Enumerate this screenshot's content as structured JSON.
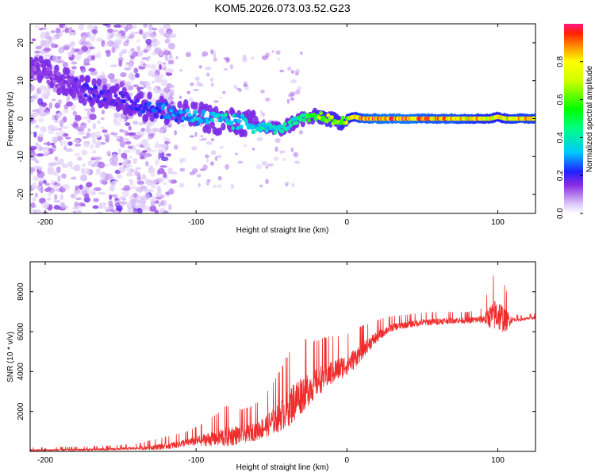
{
  "title": "KOM5.2026.073.03.52.G23",
  "chart_data": [
    {
      "type": "heatmap",
      "title": "KOM5.2026.073.03.52.G23",
      "xlabel": "Height of straight line (km)",
      "ylabel": "Frequency (Hz)",
      "xlim": [
        -210,
        125
      ],
      "ylim": [
        -25,
        25
      ],
      "x_ticks": [
        -200,
        -100,
        0,
        100
      ],
      "x_tick_labels": [
        "-200",
        "-100",
        "0",
        "100"
      ],
      "y_ticks": [
        -20,
        -10,
        0,
        10,
        20
      ],
      "y_tick_labels": [
        "-20",
        "-10",
        "0",
        "10",
        "20"
      ],
      "colorbar": {
        "label": "Normalized spectral amplitude",
        "range": [
          0,
          1
        ],
        "ticks": [
          0,
          0.2,
          0.4,
          0.6,
          0.8
        ],
        "tick_labels": [
          "0.0",
          "0.2",
          "0.4",
          "0.6",
          "0.8"
        ]
      },
      "ridge": {
        "x": [
          -210,
          -190,
          -170,
          -150,
          -130,
          -120,
          -110,
          -100,
          -90,
          -80,
          -70,
          -60,
          -50,
          -45,
          -40,
          -35,
          -30,
          -25,
          -20,
          -15,
          -10,
          -5,
          0,
          5,
          10,
          20,
          30,
          40,
          50,
          60,
          70,
          80,
          90,
          95,
          100,
          105,
          110,
          120,
          125
        ],
        "freq": [
          14,
          10,
          7,
          5,
          3,
          2,
          1,
          0.5,
          0,
          -1,
          -1,
          -2,
          -2.5,
          -3,
          -2,
          -1,
          0,
          0,
          0.5,
          0.5,
          -0.5,
          -1,
          0,
          0.5,
          0,
          0,
          0,
          0,
          0,
          0,
          0,
          0,
          0,
          0,
          0.5,
          0,
          0,
          0,
          0
        ],
        "amplitude": [
          0.15,
          0.15,
          0.2,
          0.2,
          0.25,
          0.3,
          0.3,
          0.35,
          0.35,
          0.4,
          0.35,
          0.4,
          0.4,
          0.4,
          0.45,
          0.45,
          0.5,
          0.55,
          0.65,
          0.7,
          0.7,
          0.7,
          0.75,
          0.8,
          0.9,
          0.95,
          0.97,
          0.97,
          0.92,
          0.9,
          0.9,
          0.85,
          0.82,
          0.8,
          0.78,
          0.8,
          0.85,
          0.85,
          0.85
        ]
      }
    },
    {
      "type": "line",
      "xlabel": "Height of straight line (km)",
      "ylabel": "SNR (10 * v/v)",
      "xlim": [
        -210,
        125
      ],
      "ylim": [
        0,
        9500
      ],
      "x_ticks": [
        -200,
        -100,
        0,
        100
      ],
      "x_tick_labels": [
        "-200",
        "-100",
        "0",
        "100"
      ],
      "y_ticks": [
        2000,
        4000,
        6000,
        8000
      ],
      "y_tick_labels": [
        "2000",
        "4000",
        "6000",
        "8000"
      ],
      "series": [
        {
          "name": "SNR",
          "color": "#ef2c2c",
          "x": [
            -210,
            -200,
            -180,
            -160,
            -140,
            -125,
            -115,
            -105,
            -95,
            -85,
            -80,
            -75,
            -70,
            -65,
            -60,
            -55,
            -50,
            -45,
            -40,
            -35,
            -30,
            -25,
            -20,
            -15,
            -10,
            -5,
            0,
            5,
            10,
            15,
            20,
            25,
            30,
            40,
            50,
            60,
            70,
            80,
            90,
            95,
            100,
            105,
            110,
            115,
            120,
            125
          ],
          "baseline": [
            50,
            60,
            80,
            100,
            150,
            220,
            300,
            450,
            550,
            650,
            700,
            750,
            800,
            900,
            1000,
            1150,
            1400,
            1700,
            2000,
            2400,
            2800,
            3100,
            3400,
            3700,
            3900,
            4100,
            4300,
            4600,
            5000,
            5400,
            5700,
            6000,
            6200,
            6350,
            6450,
            6500,
            6550,
            6550,
            6600,
            6700,
            6800,
            6500,
            6600,
            6600,
            6650,
            6700
          ],
          "amplitude": [
            100,
            100,
            100,
            120,
            150,
            300,
            350,
            400,
            600,
            900,
            1100,
            1000,
            900,
            900,
            1000,
            1100,
            1300,
            1600,
            1900,
            2100,
            2000,
            1700,
            1500,
            1400,
            1300,
            1200,
            1100,
            1000,
            900,
            700,
            600,
            500,
            400,
            350,
            350,
            350,
            300,
            300,
            400,
            1200,
            1800,
            1200,
            200,
            150,
            150,
            150
          ]
        }
      ]
    }
  ]
}
